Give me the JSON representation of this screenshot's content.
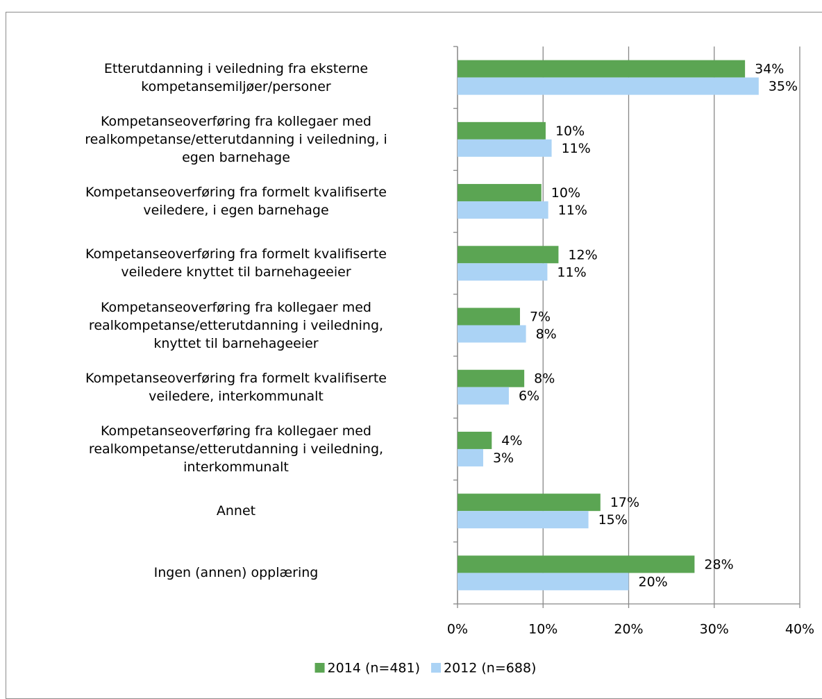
{
  "chart_data": {
    "type": "bar",
    "orientation": "horizontal",
    "categories": [
      "Etterutdanning i veiledning fra eksterne\nkompetansemiljøer/personer",
      "Kompetanseoverføring fra kollegaer med\nrealkompetanse/etterutdanning i veiledning, i\negen barnehage",
      "Kompetanseoverføring fra formelt kvalifiserte\nveiledere, i egen barnehage",
      "Kompetanseoverføring fra formelt kvalifiserte\nveiledere knyttet til barnehageeier",
      "Kompetanseoverføring fra kollegaer med\nrealkompetanse/etterutdanning i veiledning,\nknyttet til barnehageeier",
      "Kompetanseoverføring fra formelt kvalifiserte\nveiledere, interkommunalt",
      "Kompetanseoverføring fra kollegaer med\nrealkompetanse/etterutdanning i veiledning,\ninterkommunalt",
      "Annet",
      "Ingen (annen) opplæring"
    ],
    "series": [
      {
        "name": "2014 (n=481)",
        "color": "#5ba553",
        "values": [
          33.6,
          10.3,
          9.8,
          11.8,
          7.3,
          7.8,
          4.0,
          16.7,
          27.7
        ],
        "value_labels": [
          "34%",
          "10%",
          "10%",
          "12%",
          "7%",
          "8%",
          "4%",
          "17%",
          "28%"
        ]
      },
      {
        "name": "2012 (n=688)",
        "color": "#abd3f5",
        "values": [
          35.2,
          11.0,
          10.6,
          10.5,
          8.0,
          6.0,
          3.0,
          15.3,
          20.0
        ],
        "value_labels": [
          "35%",
          "11%",
          "11%",
          "11%",
          "8%",
          "6%",
          "3%",
          "15%",
          "20%"
        ]
      }
    ],
    "xlim": [
      0,
      40
    ],
    "xticks": [
      {
        "value": 0,
        "label": "0%"
      },
      {
        "value": 10,
        "label": "10%"
      },
      {
        "value": 20,
        "label": "20%"
      },
      {
        "value": 30,
        "label": "30%"
      },
      {
        "value": 40,
        "label": "40%"
      }
    ],
    "grid": true,
    "legend": "bottom"
  }
}
